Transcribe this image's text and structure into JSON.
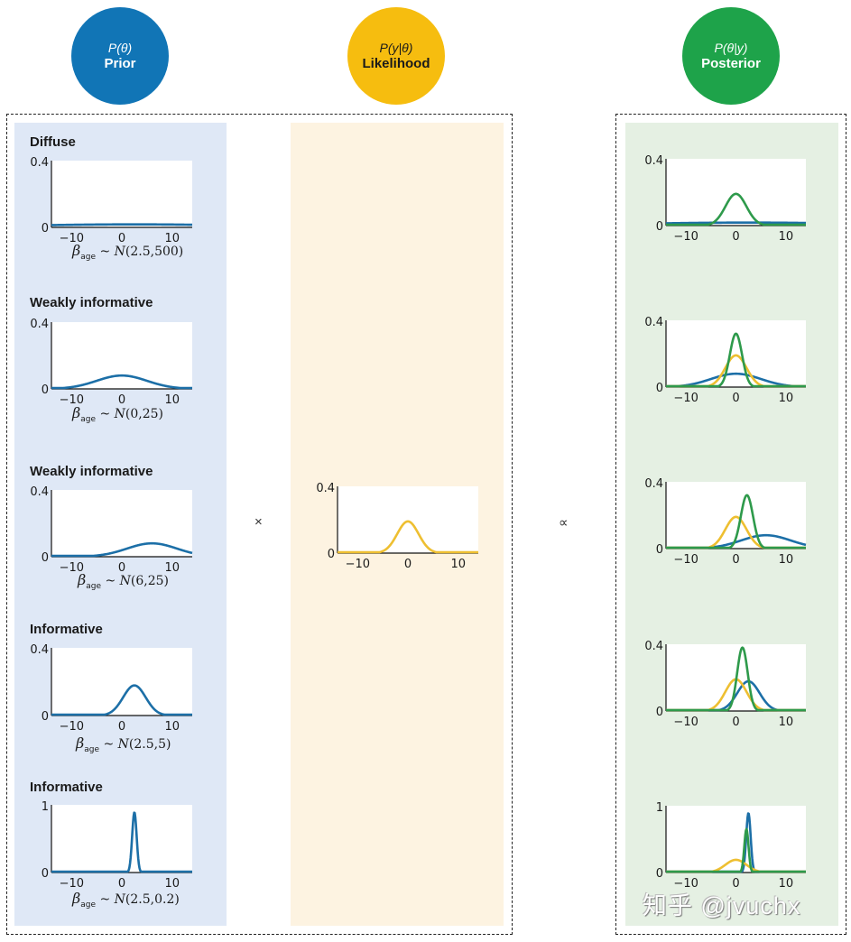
{
  "headers": {
    "prior": {
      "formula": "P(θ)",
      "label": "Prior",
      "color": "#1175b6"
    },
    "likelihood": {
      "formula": "P(y|θ)",
      "label": "Likelihood",
      "color": "#f6bd0f"
    },
    "posterior": {
      "formula": "P(θ|y)",
      "label": "Posterior",
      "color": "#1ea34a"
    }
  },
  "operators": {
    "times": "×",
    "proportional": "∝"
  },
  "colors": {
    "prior_line": "#1c6fa7",
    "likelihood_line": "#eebf31",
    "posterior_line": "#2e9a4b",
    "prior_panel_bg": "#dfe8f6",
    "likelihood_panel_bg": "#fdf3e1",
    "posterior_panel_bg": "#e5f0e3"
  },
  "watermark": "知乎 @jvuchx",
  "chart_data": [
    {
      "id": "prior-1",
      "type": "line",
      "title": "Diffuse",
      "xlim": [
        -14,
        14
      ],
      "ylim": [
        0,
        0.4
      ],
      "xticks": [
        -10,
        0,
        10
      ],
      "yticks": [
        "0",
        "0.4"
      ],
      "xlabel": "β_age ~ N(2.5,500)",
      "label": {
        "beta": "β",
        "sub": "age",
        "dist": "N",
        "params": "(2.5,500)"
      },
      "series": [
        {
          "name": "Prior",
          "mean": 2.5,
          "variance": 500,
          "peak": 0.018
        }
      ]
    },
    {
      "id": "prior-2",
      "type": "line",
      "title": "Weakly informative",
      "xlim": [
        -14,
        14
      ],
      "ylim": [
        0,
        0.4
      ],
      "xticks": [
        -10,
        0,
        10
      ],
      "yticks": [
        "0",
        "0.4"
      ],
      "xlabel": "β_age ~ N(0,25)",
      "label": {
        "beta": "β",
        "sub": "age",
        "dist": "N",
        "params": "(0,25)"
      },
      "series": [
        {
          "name": "Prior",
          "mean": 0,
          "variance": 25,
          "peak": 0.08
        }
      ]
    },
    {
      "id": "prior-3",
      "type": "line",
      "title": "Weakly informative",
      "xlim": [
        -14,
        14
      ],
      "ylim": [
        0,
        0.4
      ],
      "xticks": [
        -10,
        0,
        10
      ],
      "yticks": [
        "0",
        "0.4"
      ],
      "xlabel": "β_age ~ N(6,25)",
      "label": {
        "beta": "β",
        "sub": "age",
        "dist": "N",
        "params": "(6,25)"
      },
      "series": [
        {
          "name": "Prior",
          "mean": 6,
          "variance": 25,
          "peak": 0.08
        }
      ]
    },
    {
      "id": "prior-4",
      "type": "line",
      "title": "Informative",
      "xlim": [
        -14,
        14
      ],
      "ylim": [
        0,
        0.4
      ],
      "xticks": [
        -10,
        0,
        10
      ],
      "yticks": [
        "0",
        "0.4"
      ],
      "xlabel": "β_age ~ N(2.5,5)",
      "label": {
        "beta": "β",
        "sub": "age",
        "dist": "N",
        "params": "(2.5,5)"
      },
      "series": [
        {
          "name": "Prior",
          "mean": 2.5,
          "variance": 5,
          "peak": 0.178
        }
      ]
    },
    {
      "id": "prior-5",
      "type": "line",
      "title": "Informative",
      "xlim": [
        -14,
        14
      ],
      "ylim": [
        0,
        1
      ],
      "xticks": [
        -10,
        0,
        10
      ],
      "yticks": [
        "0",
        "1"
      ],
      "xlabel": "β_age ~ N(2.5,0.2)",
      "label": {
        "beta": "β",
        "sub": "age",
        "dist": "N",
        "params": "(2.5,0.2)"
      },
      "series": [
        {
          "name": "Prior",
          "mean": 2.5,
          "variance": 0.2,
          "peak": 0.89
        }
      ]
    },
    {
      "id": "likelihood",
      "type": "line",
      "title": "",
      "xlim": [
        -14,
        14
      ],
      "ylim": [
        0,
        0.4
      ],
      "xticks": [
        -10,
        0,
        10
      ],
      "yticks": [
        "0",
        "0.4"
      ],
      "series": [
        {
          "name": "Likelihood",
          "mean": 0,
          "variance": 4.5,
          "peak": 0.19
        }
      ]
    },
    {
      "id": "posterior-1",
      "type": "line",
      "title": "",
      "xlim": [
        -14,
        14
      ],
      "ylim": [
        0,
        0.4
      ],
      "xticks": [
        -10,
        0,
        10
      ],
      "yticks": [
        "0",
        "0.4"
      ],
      "series": [
        {
          "name": "Prior",
          "mean": 2.5,
          "variance": 500,
          "peak": 0.018
        },
        {
          "name": "Posterior",
          "mean": 0,
          "variance": 4.4,
          "peak": 0.19
        }
      ]
    },
    {
      "id": "posterior-2",
      "type": "line",
      "title": "",
      "xlim": [
        -14,
        14
      ],
      "ylim": [
        0,
        0.4
      ],
      "xticks": [
        -10,
        0,
        10
      ],
      "yticks": [
        "0",
        "0.4"
      ],
      "series": [
        {
          "name": "Prior",
          "mean": 0,
          "variance": 25,
          "peak": 0.08
        },
        {
          "name": "Likelihood",
          "mean": 0,
          "variance": 4.5,
          "peak": 0.19
        },
        {
          "name": "Posterior",
          "mean": 0,
          "variance": 1.5,
          "peak": 0.32
        }
      ]
    },
    {
      "id": "posterior-3",
      "type": "line",
      "title": "",
      "xlim": [
        -14,
        14
      ],
      "ylim": [
        0,
        0.4
      ],
      "xticks": [
        -10,
        0,
        10
      ],
      "yticks": [
        "0",
        "0.4"
      ],
      "series": [
        {
          "name": "Prior",
          "mean": 6,
          "variance": 25,
          "peak": 0.08
        },
        {
          "name": "Likelihood",
          "mean": 0,
          "variance": 4.5,
          "peak": 0.19
        },
        {
          "name": "Posterior",
          "mean": 2.2,
          "variance": 1.5,
          "peak": 0.32
        }
      ]
    },
    {
      "id": "posterior-4",
      "type": "line",
      "title": "",
      "xlim": [
        -14,
        14
      ],
      "ylim": [
        0,
        0.4
      ],
      "xticks": [
        -10,
        0,
        10
      ],
      "yticks": [
        "0",
        "0.4"
      ],
      "series": [
        {
          "name": "Prior",
          "mean": 2.5,
          "variance": 5,
          "peak": 0.178
        },
        {
          "name": "Likelihood",
          "mean": 0,
          "variance": 4.5,
          "peak": 0.19
        },
        {
          "name": "Posterior",
          "mean": 1.3,
          "variance": 1.1,
          "peak": 0.38
        }
      ]
    },
    {
      "id": "posterior-5",
      "type": "line",
      "title": "",
      "xlim": [
        -14,
        14
      ],
      "ylim": [
        0,
        1
      ],
      "xticks": [
        -10,
        0,
        10
      ],
      "yticks": [
        "0",
        "1"
      ],
      "series": [
        {
          "name": "Prior",
          "mean": 2.5,
          "variance": 0.2,
          "peak": 0.89
        },
        {
          "name": "Likelihood",
          "mean": 0,
          "variance": 4.5,
          "peak": 0.19
        },
        {
          "name": "Posterior",
          "mean": 2.1,
          "variance": 0.18,
          "peak": 0.65
        }
      ]
    }
  ]
}
